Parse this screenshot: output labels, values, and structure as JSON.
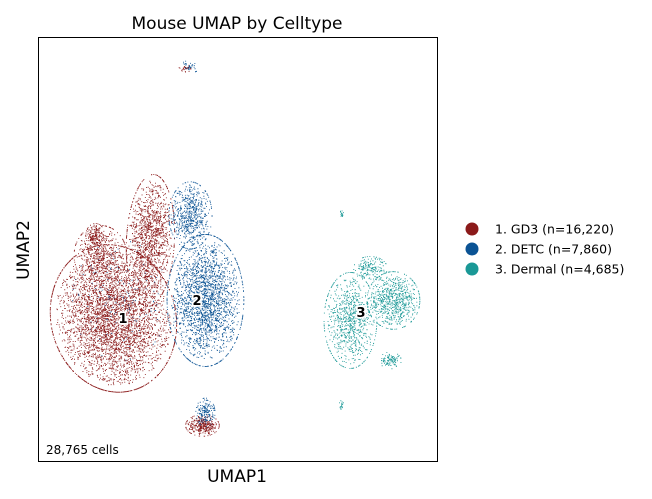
{
  "chart_data": {
    "type": "scatter",
    "title": "Mouse UMAP by Celltype",
    "xlabel": "UMAP1",
    "ylabel": "UMAP2",
    "annotation": "28,765 cells",
    "grid": false,
    "legend_position": "right",
    "series": [
      {
        "id": "1",
        "name": "1. GD3 (n=16,220)",
        "color": "#8b1a1a",
        "count": 16220
      },
      {
        "id": "2",
        "name": "2. DETC (n=7,860)",
        "color": "#0b5394",
        "count": 7860
      },
      {
        "id": "3",
        "name": "3. Dermal (n=4,685)",
        "color": "#1a9896",
        "count": 4685
      }
    ]
  }
}
